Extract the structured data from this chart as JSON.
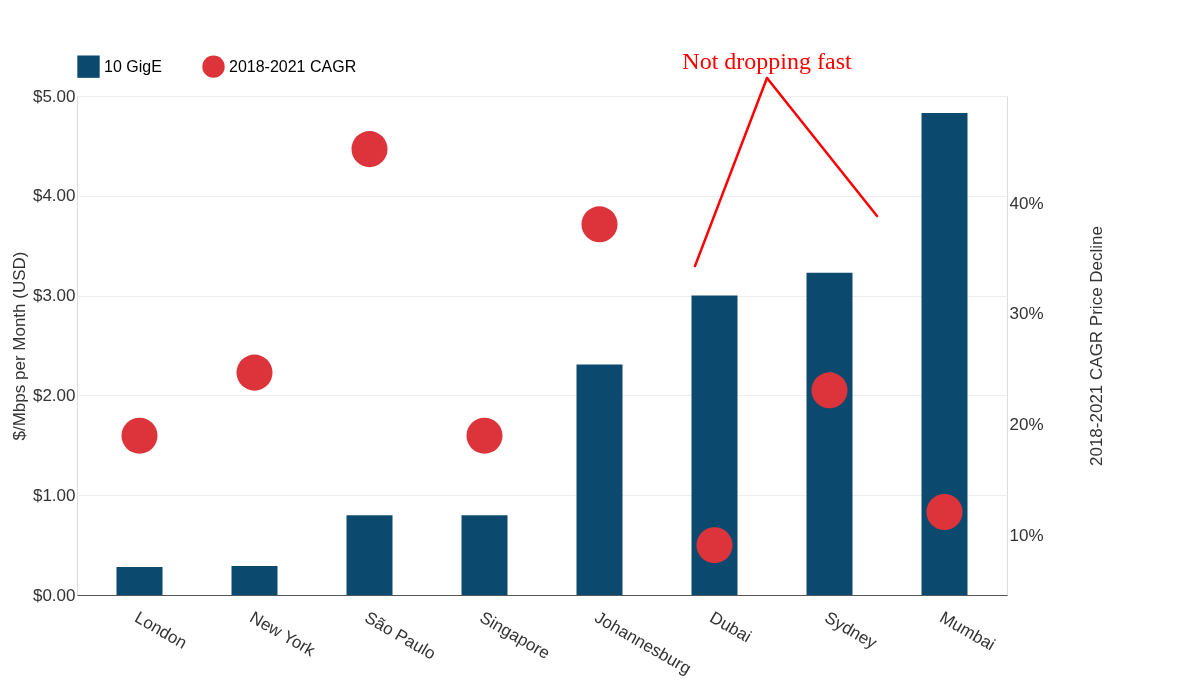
{
  "chart_data": {
    "type": "bar",
    "categories": [
      "London",
      "New York",
      "São Paulo",
      "Singapore",
      "Johannesburg",
      "Dubai",
      "Sydney",
      "Mumbai"
    ],
    "series": [
      {
        "name": "10 GigE",
        "color": "#0b4a6e",
        "values": [
          0.28,
          0.29,
          0.8,
          0.8,
          2.31,
          3.0,
          3.23,
          4.83
        ]
      },
      {
        "name": "2018-2021 CAGR",
        "type": "scatter",
        "axis": "y2",
        "color": "#dd343b",
        "values": [
          19.0,
          24.7,
          44.9,
          19.0,
          38.1,
          9.1,
          23.1,
          12.1
        ]
      }
    ],
    "ylabel": "$/Mbps per Month (USD)",
    "y2label": "2018-2021 CAGR Price Decline",
    "ylim": [
      0,
      5
    ],
    "yticks": [
      {
        "value": 0,
        "label": "$0.00"
      },
      {
        "value": 1,
        "label": "$1.00"
      },
      {
        "value": 2,
        "label": "$2.00"
      },
      {
        "value": 3,
        "label": "$3.00"
      },
      {
        "value": 4,
        "label": "$4.00"
      },
      {
        "value": 5,
        "label": "$5.00"
      }
    ],
    "y2lim": [
      4.6,
      49.7
    ],
    "y2ticks": [
      {
        "value": 10,
        "label": "10%"
      },
      {
        "value": 20,
        "label": "20%"
      },
      {
        "value": 30,
        "label": "30%"
      },
      {
        "value": 40,
        "label": "40%"
      }
    ],
    "annotations": [
      "Not dropping fast"
    ],
    "grid": "y",
    "legend": "top left",
    "marker": "circle"
  }
}
